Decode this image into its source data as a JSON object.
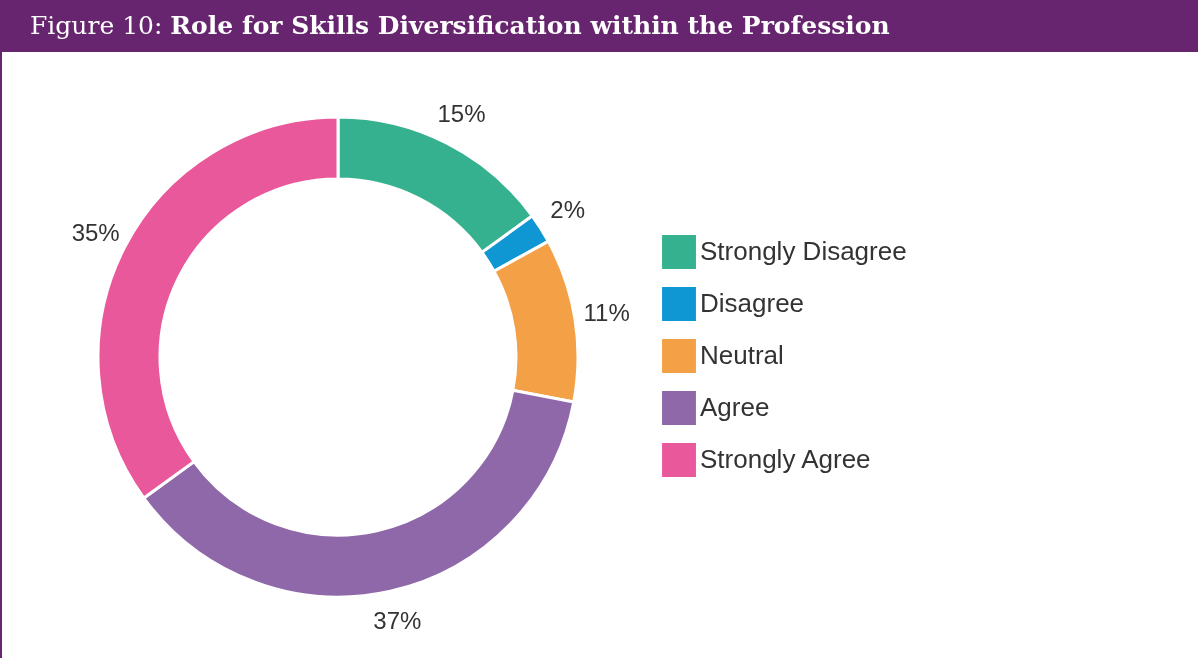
{
  "chart_data": {
    "type": "donut",
    "title": "Figure 10: Role for Skills Diversification within the Profession",
    "categories": [
      "Strongly Disagree",
      "Disagree",
      "Neutral",
      "Agree",
      "Strongly Agree"
    ],
    "values": [
      15,
      2,
      11,
      37,
      35
    ],
    "value_labels": [
      "15%",
      "2%",
      "11%",
      "37%",
      "35%"
    ],
    "colors": [
      "#36b18f",
      "#0f97d4",
      "#f4a046",
      "#8f68aa",
      "#e9589b"
    ],
    "legend": "right"
  }
}
